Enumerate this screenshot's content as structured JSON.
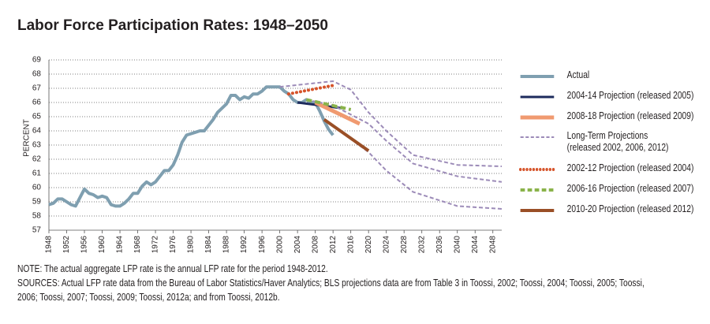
{
  "chart_data": {
    "type": "line",
    "title": "Labor Force Participation Rates: 1948–2050",
    "y_label": "PERCENT",
    "xlim": [
      1948,
      2050
    ],
    "ylim": [
      57,
      69
    ],
    "xticks": [
      1948,
      1952,
      1956,
      1960,
      1964,
      1968,
      1972,
      1976,
      1980,
      1984,
      1988,
      1992,
      1996,
      2000,
      2004,
      2008,
      2012,
      2016,
      2020,
      2024,
      2028,
      2032,
      2036,
      2040,
      2044,
      2048
    ],
    "yticks": [
      57,
      58,
      59,
      60,
      61,
      62,
      63,
      64,
      65,
      66,
      67,
      68,
      69
    ],
    "grid": true,
    "series": [
      {
        "name": "Actual",
        "color": "#7f9fb0",
        "style": "solid",
        "width": 4,
        "x": [
          1948,
          1949,
          1950,
          1951,
          1952,
          1953,
          1954,
          1955,
          1956,
          1957,
          1958,
          1959,
          1960,
          1961,
          1962,
          1963,
          1964,
          1965,
          1966,
          1967,
          1968,
          1969,
          1970,
          1971,
          1972,
          1973,
          1974,
          1975,
          1976,
          1977,
          1978,
          1979,
          1980,
          1981,
          1982,
          1983,
          1984,
          1985,
          1986,
          1987,
          1988,
          1989,
          1990,
          1991,
          1992,
          1993,
          1994,
          1995,
          1996,
          1997,
          1998,
          1999,
          2000,
          2001,
          2002,
          2003,
          2004,
          2005,
          2006,
          2007,
          2008,
          2009,
          2010,
          2011,
          2012
        ],
        "values": [
          58.8,
          58.9,
          59.2,
          59.2,
          59.0,
          58.8,
          58.7,
          59.3,
          59.9,
          59.6,
          59.5,
          59.3,
          59.4,
          59.3,
          58.8,
          58.7,
          58.7,
          58.9,
          59.2,
          59.6,
          59.6,
          60.1,
          60.4,
          60.2,
          60.4,
          60.8,
          61.2,
          61.2,
          61.6,
          62.3,
          63.2,
          63.7,
          63.8,
          63.9,
          64.0,
          64.0,
          64.4,
          64.8,
          65.3,
          65.6,
          65.9,
          66.5,
          66.5,
          66.2,
          66.4,
          66.3,
          66.6,
          66.6,
          66.8,
          67.1,
          67.1,
          67.1,
          67.1,
          66.8,
          66.6,
          66.2,
          66.0,
          66.0,
          66.2,
          66.0,
          66.0,
          65.4,
          64.7,
          64.1,
          63.7
        ]
      },
      {
        "name": "2004-14 Projection (released 2005)",
        "color": "#1d2b5c",
        "style": "solid",
        "width": 3,
        "x": [
          2004,
          2014
        ],
        "values": [
          66.0,
          65.6
        ]
      },
      {
        "name": "2008-18 Projection (released 2009)",
        "color": "#f09a70",
        "style": "solid",
        "width": 5,
        "x": [
          2008,
          2018
        ],
        "values": [
          66.0,
          64.5
        ]
      },
      {
        "name": "Long-Term Projections\n(released 2002, 2006, 2012)",
        "color": "#9c8bb8",
        "style": "dashed",
        "width": 2,
        "lines": [
          {
            "x": [
              2000,
              2012,
              2016,
              2020,
              2024,
              2030,
              2040,
              2050
            ],
            "values": [
              67.1,
              67.5,
              66.9,
              65.3,
              64.0,
              62.3,
              61.6,
              61.5
            ]
          },
          {
            "x": [
              2006,
              2012,
              2020,
              2024,
              2030,
              2040,
              2050
            ],
            "values": [
              66.2,
              65.8,
              64.5,
              63.3,
              61.7,
              60.8,
              60.4
            ]
          },
          {
            "x": [
              2010,
              2020,
              2024,
              2030,
              2040,
              2050
            ],
            "values": [
              64.8,
              62.5,
              61.2,
              59.7,
              58.7,
              58.5
            ]
          }
        ]
      },
      {
        "name": "2002-12 Projection (released 2004)",
        "color": "#d6542b",
        "style": "dotted",
        "width": 4,
        "x": [
          2002,
          2012
        ],
        "values": [
          66.6,
          67.2
        ]
      },
      {
        "name": "2006-16 Projection (released 2007)",
        "color": "#8ab34a",
        "style": "dashed",
        "width": 4,
        "x": [
          2006,
          2016
        ],
        "values": [
          66.2,
          65.5
        ]
      },
      {
        "name": "2010-20 Projection (released 2012)",
        "color": "#9a4f26",
        "style": "solid",
        "width": 4,
        "x": [
          2010,
          2020
        ],
        "values": [
          64.8,
          62.6
        ]
      }
    ]
  },
  "notes": {
    "note": "NOTE:  The actual aggregate LFP rate is the annual LFP rate for the period 1948-2012.",
    "sources": "SOURCES: Actual LFP rate data from the Bureau of Labor Statistics/Haver Analytics; BLS projections data are from Table 3 in Toossi, 2002; Toossi, 2004; Toossi, 2005; Toossi, 2006; Toossi, 2007; Toossi, 2009; Toossi, 2012a; and from Toossi, 2012b."
  }
}
